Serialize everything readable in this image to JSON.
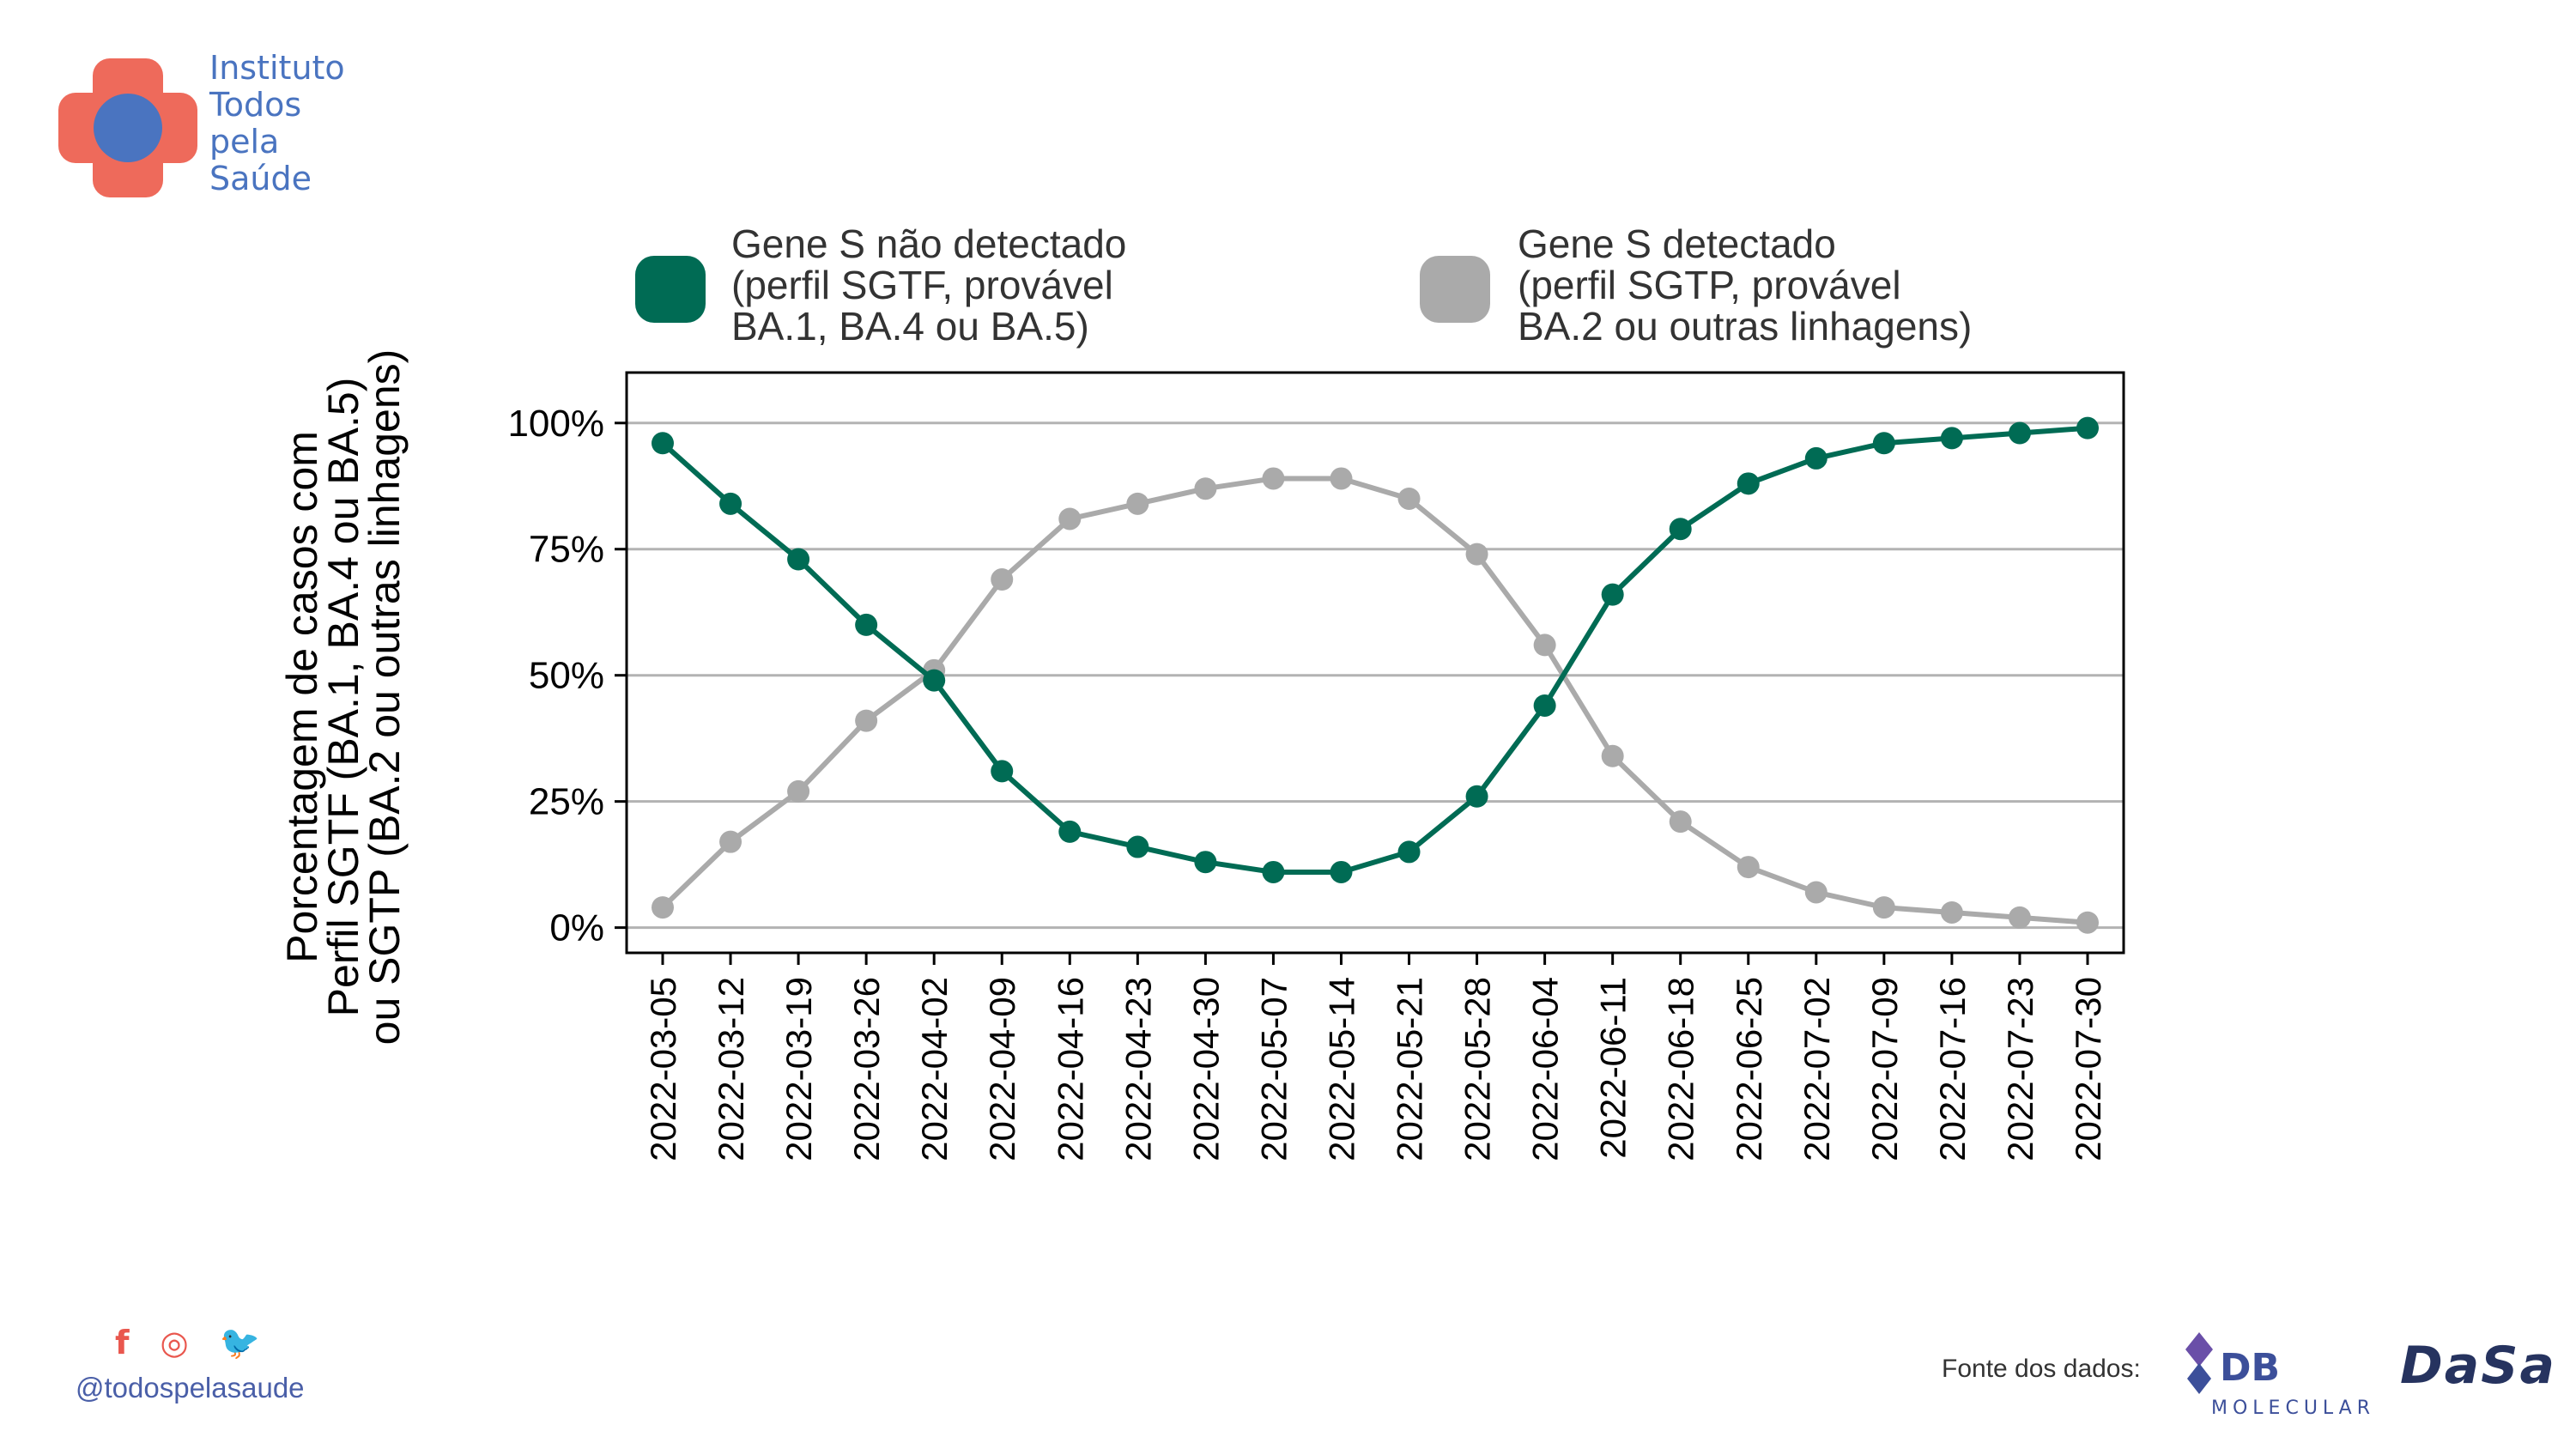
{
  "brand": {
    "name_lines": [
      "Instituto",
      "Todos",
      "pela",
      "Saúde"
    ],
    "colors": {
      "cross": "#ee6a5b",
      "circle": "#4a74c0",
      "text": "#4a74c0"
    }
  },
  "chart_data": {
    "type": "line",
    "xlabel": "",
    "ylabel": "Porcentagem de casos com\nPerfil SGTF (BA.1, BA.4 ou BA.5)\nou SGTP (BA.2 ou outras linhagens)",
    "ylim": [
      -0.05,
      1.1
    ],
    "yticks": [
      0,
      0.25,
      0.5,
      0.75,
      1.0
    ],
    "ytick_labels": [
      "0%",
      "25%",
      "50%",
      "75%",
      "100%"
    ],
    "grid": "horizontal",
    "legend_position": "top",
    "categories": [
      "2022-03-05",
      "2022-03-12",
      "2022-03-19",
      "2022-03-26",
      "2022-04-02",
      "2022-04-09",
      "2022-04-16",
      "2022-04-23",
      "2022-04-30",
      "2022-05-07",
      "2022-05-14",
      "2022-05-21",
      "2022-05-28",
      "2022-06-04",
      "2022-06-11",
      "2022-06-18",
      "2022-06-25",
      "2022-07-02",
      "2022-07-09",
      "2022-07-16",
      "2022-07-23",
      "2022-07-30"
    ],
    "series": [
      {
        "name": "Gene S não detectado\n(perfil SGTF, provável\nBA.1, BA.4 ou BA.5)",
        "color": "#006b54",
        "values": [
          0.96,
          0.84,
          0.73,
          0.6,
          0.49,
          0.31,
          0.19,
          0.16,
          0.13,
          0.11,
          0.11,
          0.15,
          0.26,
          0.44,
          0.66,
          0.79,
          0.88,
          0.93,
          0.96,
          0.97,
          0.98,
          0.99
        ]
      },
      {
        "name": "Gene S detectado\n(perfil SGTP, provável\nBA.2 ou outras linhagens)",
        "color": "#aaaaaa",
        "values": [
          0.04,
          0.17,
          0.27,
          0.41,
          0.51,
          0.69,
          0.81,
          0.84,
          0.87,
          0.89,
          0.89,
          0.85,
          0.74,
          0.56,
          0.34,
          0.21,
          0.12,
          0.07,
          0.04,
          0.03,
          0.02,
          0.01
        ]
      }
    ]
  },
  "footer": {
    "social_icons": [
      "facebook-icon",
      "instagram-icon",
      "twitter-icon"
    ],
    "handle": "@todospelasaude",
    "source_label": "Fonte dos dados:",
    "partner_logos": {
      "db_main": "DB",
      "db_sub": "MOLECULAR",
      "dasa": "DaSa"
    }
  }
}
